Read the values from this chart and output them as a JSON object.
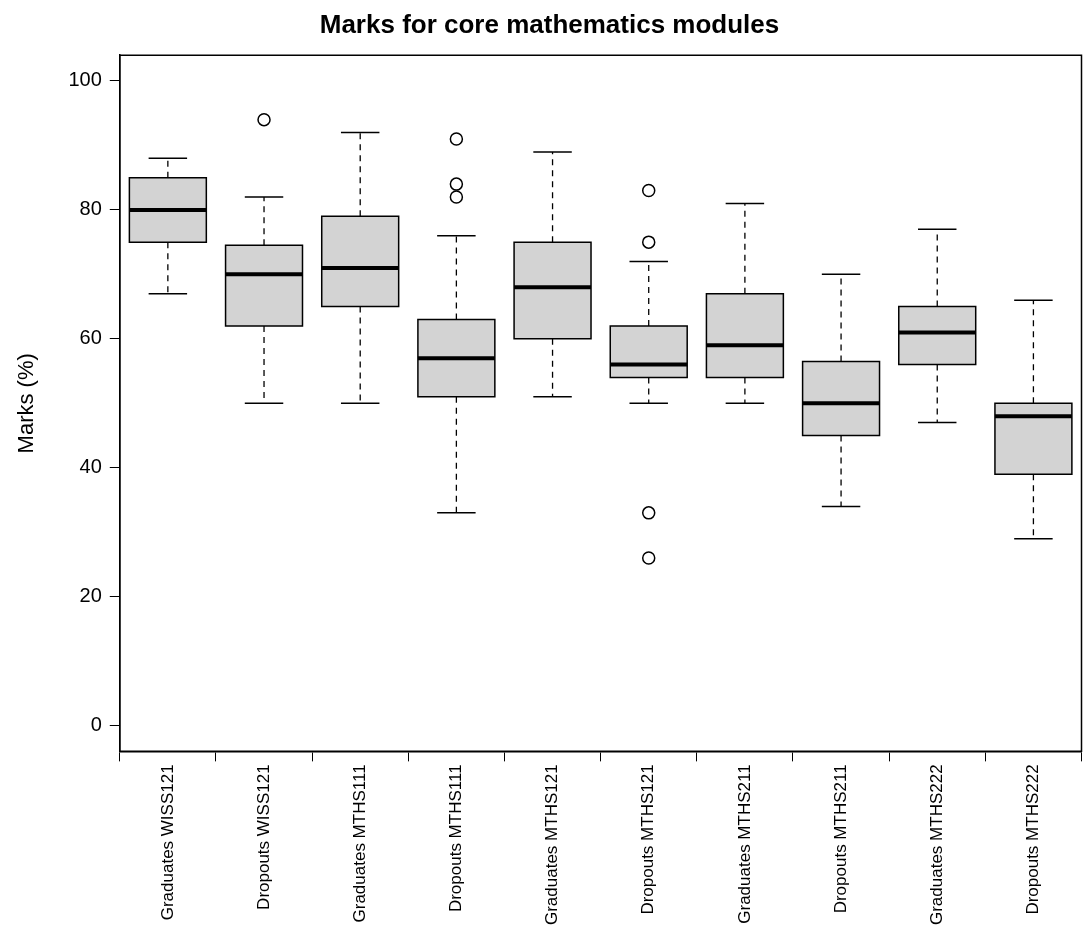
{
  "chart_data": {
    "type": "box",
    "title": "Marks for core mathematics modules",
    "ylabel": "Marks (%)",
    "categories": [
      "Graduates WISS121",
      "Dropouts WISS121",
      "Graduates MTHS111",
      "Dropouts MTHS111",
      "Graduates MTHS121",
      "Dropouts MTHS121",
      "Graduates MTHS211",
      "Dropouts MTHS211",
      "Graduates MTHS222",
      "Dropouts MTHS222"
    ],
    "color": "#d3d3d3",
    "boxes": [
      {
        "low": 67,
        "q1": 75,
        "median": 80,
        "q3": 85,
        "high": 88
      },
      {
        "low": 50,
        "q1": 62,
        "median": 70,
        "q3": 74.5,
        "high": 82,
        "outliers": [
          94
        ]
      },
      {
        "low": 50,
        "q1": 65,
        "median": 71,
        "q3": 79,
        "high": 92
      },
      {
        "low": 33,
        "q1": 51,
        "median": 57,
        "q3": 63,
        "high": 76,
        "outliers": [
          91,
          84,
          82
        ]
      },
      {
        "low": 51,
        "q1": 60,
        "median": 68,
        "q3": 75,
        "high": 89
      },
      {
        "low": 50,
        "q1": 54,
        "median": 56,
        "q3": 62,
        "high": 72,
        "outliers": [
          83,
          75,
          33,
          26
        ]
      },
      {
        "low": 50,
        "q1": 54,
        "median": 59,
        "q3": 67,
        "high": 81
      },
      {
        "low": 34,
        "q1": 45,
        "median": 50,
        "q3": 56.5,
        "high": 70
      },
      {
        "low": 47,
        "q1": 56,
        "median": 61,
        "q3": 65,
        "high": 77
      },
      {
        "low": 29,
        "q1": 39,
        "median": 48,
        "q3": 50,
        "high": 66
      }
    ],
    "ylim": [
      -4,
      104
    ],
    "yticks": [
      0,
      20,
      40,
      60,
      80,
      100
    ]
  }
}
